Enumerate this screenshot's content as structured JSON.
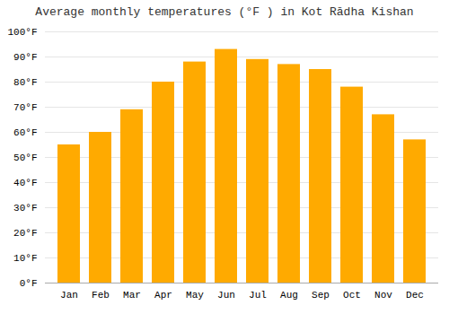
{
  "chart_data": {
    "type": "bar",
    "title": "Average monthly temperatures (°F ) in Kot Rādha Kishan",
    "categories": [
      "Jan",
      "Feb",
      "Mar",
      "Apr",
      "May",
      "Jun",
      "Jul",
      "Aug",
      "Sep",
      "Oct",
      "Nov",
      "Dec"
    ],
    "values": [
      55,
      60,
      69,
      80,
      88,
      93,
      89,
      87,
      85,
      78,
      67,
      57
    ],
    "color": "#FFAA00",
    "ylim": [
      0,
      100
    ],
    "yticks": [
      {
        "value": 0,
        "label": "0°F"
      },
      {
        "value": 10,
        "label": "10°F"
      },
      {
        "value": 20,
        "label": "20°F"
      },
      {
        "value": 30,
        "label": "30°F"
      },
      {
        "value": 40,
        "label": "40°F"
      },
      {
        "value": 50,
        "label": "50°F"
      },
      {
        "value": 60,
        "label": "60°F"
      },
      {
        "value": 70,
        "label": "70°F"
      },
      {
        "value": 80,
        "label": "80°F"
      },
      {
        "value": 90,
        "label": "90°F"
      },
      {
        "value": 100,
        "label": "100°F"
      }
    ],
    "grid": true
  }
}
